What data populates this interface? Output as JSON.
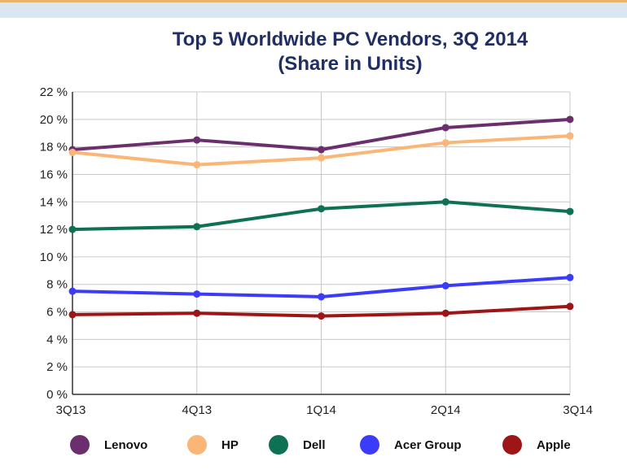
{
  "chart_data": {
    "type": "line",
    "title_line1": "Top 5 Worldwide PC Vendors, 3Q 2014",
    "title_line2": "(Share in Units)",
    "categories": [
      "3Q13",
      "4Q13",
      "1Q14",
      "2Q14",
      "3Q14"
    ],
    "ylim": [
      0,
      22
    ],
    "yticks": [
      0,
      2,
      4,
      6,
      8,
      10,
      12,
      14,
      16,
      18,
      20,
      22
    ],
    "ytick_labels": [
      "0 %",
      "2 %",
      "4 %",
      "6 %",
      "8 %",
      "10 %",
      "12 %",
      "14 %",
      "16 %",
      "18 %",
      "20 %",
      "22 %"
    ],
    "grid": true,
    "legend_position": "bottom",
    "series": [
      {
        "name": "Lenovo",
        "color": "#6b2f6e",
        "values": [
          17.8,
          18.5,
          17.8,
          19.4,
          20.0
        ]
      },
      {
        "name": "HP",
        "color": "#f9b676",
        "values": [
          17.6,
          16.7,
          17.2,
          18.3,
          18.8
        ]
      },
      {
        "name": "Dell",
        "color": "#0e7154",
        "values": [
          12.0,
          12.2,
          13.5,
          14.0,
          13.3
        ]
      },
      {
        "name": "Acer Group",
        "color": "#3b3bfa",
        "values": [
          7.5,
          7.3,
          7.1,
          7.9,
          8.5
        ]
      },
      {
        "name": "Apple",
        "color": "#9e1517",
        "values": [
          5.8,
          5.9,
          5.7,
          5.9,
          6.4
        ]
      }
    ]
  }
}
